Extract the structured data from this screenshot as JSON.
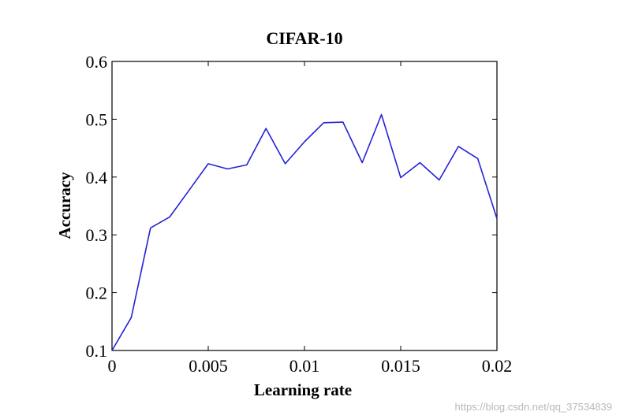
{
  "chart_data": {
    "type": "line",
    "title": "CIFAR-10",
    "xlabel": "Learning rate",
    "ylabel": "Accuracy",
    "xlim": [
      0,
      0.02
    ],
    "ylim": [
      0.1,
      0.6
    ],
    "x_ticks": [
      "0",
      "0.005",
      "0.01",
      "0.015",
      "0.02"
    ],
    "y_ticks": [
      "0.1",
      "0.2",
      "0.3",
      "0.4",
      "0.5",
      "0.6"
    ],
    "x_tick_values": [
      0,
      0.005,
      0.01,
      0.015,
      0.02
    ],
    "y_tick_values": [
      0.1,
      0.2,
      0.3,
      0.4,
      0.5,
      0.6
    ],
    "grid": false,
    "series": [
      {
        "color": "#2323d6",
        "x": [
          0,
          0.001,
          0.002,
          0.003,
          0.004,
          0.005,
          0.006,
          0.007,
          0.008,
          0.009,
          0.01,
          0.011,
          0.012,
          0.013,
          0.014,
          0.015,
          0.016,
          0.017,
          0.018,
          0.019,
          0.02
        ],
        "y": [
          0.1,
          0.157,
          0.312,
          0.331,
          0.377,
          0.423,
          0.414,
          0.421,
          0.484,
          0.423,
          0.461,
          0.494,
          0.495,
          0.425,
          0.508,
          0.399,
          0.425,
          0.395,
          0.453,
          0.432,
          0.328
        ]
      }
    ]
  },
  "watermark": "https://blog.csdn.net/qq_37534839"
}
